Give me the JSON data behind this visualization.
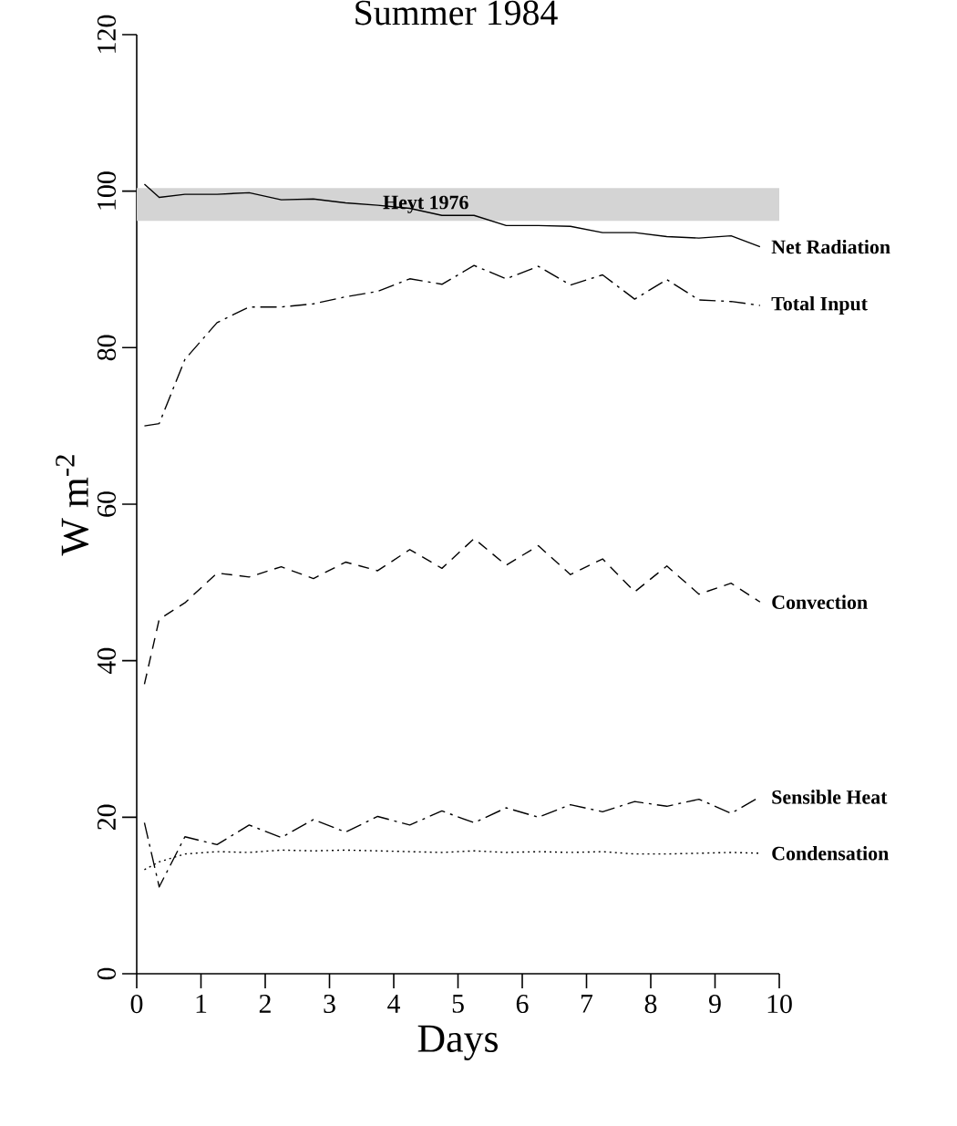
{
  "chart_data": {
    "type": "line",
    "title": "Summer 1984",
    "xlabel": "Days",
    "ylabel": "W m$^{-2}$",
    "x": [
      0.12,
      0.35,
      0.75,
      1.25,
      1.75,
      2.25,
      2.75,
      3.25,
      3.75,
      4.25,
      4.75,
      5.25,
      5.75,
      6.25,
      6.75,
      7.25,
      7.75,
      8.25,
      8.75,
      9.25,
      9.7
    ],
    "series": [
      {
        "name": "Net Radiation",
        "color": "#000000",
        "line_style": "solid",
        "values": [
          100.9,
          99.2,
          99.6,
          99.6,
          99.8,
          98.9,
          99.0,
          98.5,
          98.2,
          97.8,
          96.9,
          96.9,
          95.6,
          95.6,
          95.5,
          94.7,
          94.7,
          94.2,
          94.0,
          94.3,
          92.9
        ]
      },
      {
        "name": "Total Input",
        "color": "#000000",
        "line_style": "dashdot",
        "values": [
          70.0,
          70.3,
          78.5,
          83.2,
          85.2,
          85.2,
          85.6,
          86.5,
          87.2,
          88.8,
          88.1,
          90.5,
          88.8,
          90.4,
          88.0,
          89.3,
          86.2,
          88.7,
          86.1,
          85.9,
          85.4
        ]
      },
      {
        "name": "Convection",
        "color": "#000000",
        "line_style": "dashed",
        "values": [
          37.0,
          45.3,
          47.4,
          51.2,
          50.7,
          52.0,
          50.5,
          52.6,
          51.5,
          54.2,
          51.8,
          55.6,
          52.2,
          54.7,
          51.0,
          53.0,
          48.8,
          52.1,
          48.5,
          49.9,
          47.5
        ]
      },
      {
        "name": "Sensible Heat",
        "color": "#000000",
        "line_style": "dashdot",
        "values": [
          19.3,
          11.1,
          17.5,
          16.5,
          19.0,
          17.4,
          19.7,
          18.1,
          20.1,
          19.0,
          20.8,
          19.3,
          21.2,
          20.0,
          21.6,
          20.7,
          22.0,
          21.4,
          22.3,
          20.5,
          22.6
        ]
      },
      {
        "name": "Condensation",
        "color": "#000000",
        "line_style": "dotted",
        "values": [
          13.3,
          14.3,
          15.3,
          15.6,
          15.5,
          15.8,
          15.7,
          15.8,
          15.7,
          15.6,
          15.5,
          15.7,
          15.5,
          15.6,
          15.5,
          15.6,
          15.3,
          15.3,
          15.4,
          15.5,
          15.4
        ]
      }
    ],
    "bands": [
      {
        "axis": "y",
        "from": 96.2,
        "to": 100.4,
        "label": "Heyt 1976",
        "color": "#d4d4d4"
      }
    ],
    "xlim": [
      0,
      10
    ],
    "xticks": [
      0,
      1,
      2,
      3,
      4,
      5,
      6,
      7,
      8,
      9,
      10
    ],
    "ylim": [
      0,
      120
    ],
    "yticks": [
      0,
      20,
      40,
      60,
      80,
      100,
      120
    ],
    "grid": false,
    "marker": "none"
  }
}
